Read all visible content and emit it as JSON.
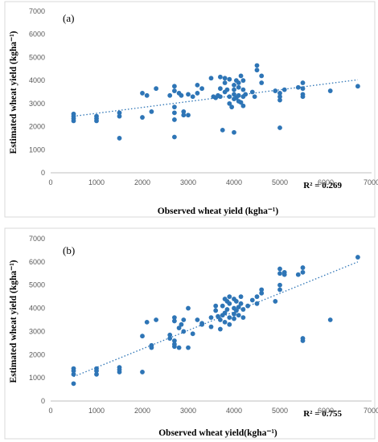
{
  "chart_data": [
    {
      "type": "scatter",
      "panel_label": "(a)",
      "xlabel": "Observed wheat yield (kgha⁻¹)",
      "ylabel": "Estimated wheat yield (kgha⁻¹)",
      "xlim": [
        0,
        7000
      ],
      "ylim": [
        0,
        7000
      ],
      "x_ticks": [
        0,
        1000,
        2000,
        3000,
        4000,
        5000,
        6000,
        7000
      ],
      "y_ticks": [
        0,
        1000,
        2000,
        3000,
        4000,
        5000,
        6000,
        7000
      ],
      "r2_label": "R² = 0.269",
      "trendline": {
        "x": [
          500,
          6700
        ],
        "y": [
          2450,
          4030
        ]
      },
      "color": "#2e75b6",
      "points": [
        [
          500,
          2550
        ],
        [
          500,
          2450
        ],
        [
          500,
          2350
        ],
        [
          500,
          2250
        ],
        [
          1000,
          2450
        ],
        [
          1000,
          2350
        ],
        [
          1000,
          2250
        ],
        [
          1500,
          2600
        ],
        [
          1500,
          2450
        ],
        [
          1500,
          1500
        ],
        [
          2000,
          3450
        ],
        [
          2000,
          2400
        ],
        [
          2100,
          3350
        ],
        [
          2200,
          2650
        ],
        [
          2300,
          3650
        ],
        [
          2600,
          3350
        ],
        [
          2700,
          3750
        ],
        [
          2700,
          3550
        ],
        [
          2700,
          2850
        ],
        [
          2700,
          2600
        ],
        [
          2700,
          2300
        ],
        [
          2700,
          1550
        ],
        [
          2800,
          3450
        ],
        [
          2850,
          3350
        ],
        [
          2900,
          2650
        ],
        [
          2900,
          2500
        ],
        [
          3000,
          3400
        ],
        [
          3000,
          2500
        ],
        [
          3100,
          3300
        ],
        [
          3200,
          3800
        ],
        [
          3200,
          3450
        ],
        [
          3300,
          3650
        ],
        [
          3500,
          4100
        ],
        [
          3550,
          3300
        ],
        [
          3600,
          3250
        ],
        [
          3650,
          3350
        ],
        [
          3700,
          4150
        ],
        [
          3700,
          3650
        ],
        [
          3700,
          3300
        ],
        [
          3750,
          1850
        ],
        [
          3800,
          4100
        ],
        [
          3800,
          3900
        ],
        [
          3800,
          3500
        ],
        [
          3850,
          3600
        ],
        [
          3900,
          4050
        ],
        [
          3900,
          3300
        ],
        [
          3900,
          3000
        ],
        [
          3950,
          2850
        ],
        [
          4000,
          3800
        ],
        [
          4000,
          3600
        ],
        [
          4000,
          3400
        ],
        [
          4000,
          3200
        ],
        [
          4000,
          1750
        ],
        [
          4050,
          4000
        ],
        [
          4050,
          3250
        ],
        [
          4100,
          3900
        ],
        [
          4100,
          3700
        ],
        [
          4100,
          3350
        ],
        [
          4100,
          3100
        ],
        [
          4150,
          4200
        ],
        [
          4150,
          3050
        ],
        [
          4200,
          4000
        ],
        [
          4200,
          3600
        ],
        [
          4200,
          3300
        ],
        [
          4200,
          2900
        ],
        [
          4250,
          3400
        ],
        [
          4400,
          3500
        ],
        [
          4450,
          3300
        ],
        [
          4500,
          4450
        ],
        [
          4500,
          4650
        ],
        [
          4600,
          4200
        ],
        [
          4600,
          3900
        ],
        [
          4900,
          3550
        ],
        [
          5000,
          3450
        ],
        [
          5000,
          3300
        ],
        [
          5000,
          3150
        ],
        [
          5000,
          1950
        ],
        [
          5100,
          3600
        ],
        [
          5400,
          3700
        ],
        [
          5500,
          3900
        ],
        [
          5500,
          3650
        ],
        [
          5500,
          3400
        ],
        [
          5500,
          3300
        ],
        [
          6100,
          3550
        ],
        [
          6700,
          3750
        ]
      ]
    },
    {
      "type": "scatter",
      "panel_label": "(b)",
      "xlabel": "Observed wheat yield(kgha⁻¹)",
      "ylabel": "Estimated wheat yield (kgha⁻¹)",
      "xlim": [
        0,
        7000
      ],
      "ylim": [
        0,
        7000
      ],
      "x_ticks": [
        0,
        1000,
        2000,
        3000,
        4000,
        5000,
        6000,
        7000
      ],
      "y_ticks": [
        0,
        1000,
        2000,
        3000,
        4000,
        5000,
        6000,
        7000
      ],
      "r2_label": "R² = 0.755",
      "trendline": {
        "x": [
          500,
          6700
        ],
        "y": [
          1050,
          6000
        ]
      },
      "color": "#2e75b6",
      "points": [
        [
          500,
          1400
        ],
        [
          500,
          1300
        ],
        [
          500,
          1150
        ],
        [
          500,
          750
        ],
        [
          1000,
          1400
        ],
        [
          1000,
          1300
        ],
        [
          1000,
          1150
        ],
        [
          1500,
          1450
        ],
        [
          1500,
          1350
        ],
        [
          1500,
          1250
        ],
        [
          2000,
          2800
        ],
        [
          2000,
          1250
        ],
        [
          2100,
          3400
        ],
        [
          2200,
          2400
        ],
        [
          2200,
          2300
        ],
        [
          2300,
          3500
        ],
        [
          2600,
          2700
        ],
        [
          2600,
          2850
        ],
        [
          2700,
          3600
        ],
        [
          2700,
          3450
        ],
        [
          2700,
          2600
        ],
        [
          2700,
          2450
        ],
        [
          2700,
          2350
        ],
        [
          2800,
          3150
        ],
        [
          2800,
          2300
        ],
        [
          2850,
          3300
        ],
        [
          2900,
          3500
        ],
        [
          2900,
          3000
        ],
        [
          3000,
          4000
        ],
        [
          3000,
          2300
        ],
        [
          3100,
          2900
        ],
        [
          3200,
          3500
        ],
        [
          3300,
          3300
        ],
        [
          3300,
          3350
        ],
        [
          3500,
          3600
        ],
        [
          3500,
          3200
        ],
        [
          3600,
          4100
        ],
        [
          3600,
          3900
        ],
        [
          3650,
          3650
        ],
        [
          3700,
          3500
        ],
        [
          3700,
          3100
        ],
        [
          3750,
          4100
        ],
        [
          3750,
          3700
        ],
        [
          3800,
          4400
        ],
        [
          3800,
          3800
        ],
        [
          3800,
          3400
        ],
        [
          3850,
          4300
        ],
        [
          3850,
          3950
        ],
        [
          3900,
          4500
        ],
        [
          3900,
          4200
        ],
        [
          3900,
          3600
        ],
        [
          3900,
          3300
        ],
        [
          4000,
          4400
        ],
        [
          4000,
          4000
        ],
        [
          4000,
          3750
        ],
        [
          4000,
          3550
        ],
        [
          4050,
          4300
        ],
        [
          4050,
          3900
        ],
        [
          4100,
          4050
        ],
        [
          4100,
          3700
        ],
        [
          4150,
          4500
        ],
        [
          4150,
          4200
        ],
        [
          4200,
          3950
        ],
        [
          4200,
          3600
        ],
        [
          4300,
          4100
        ],
        [
          4400,
          4350
        ],
        [
          4500,
          4500
        ],
        [
          4500,
          4200
        ],
        [
          4600,
          4650
        ],
        [
          4600,
          4800
        ],
        [
          4900,
          4300
        ],
        [
          5000,
          5700
        ],
        [
          5000,
          5500
        ],
        [
          5000,
          5000
        ],
        [
          5000,
          4800
        ],
        [
          5100,
          5550
        ],
        [
          5100,
          5450
        ],
        [
          5400,
          5450
        ],
        [
          5500,
          5750
        ],
        [
          5500,
          5550
        ],
        [
          5500,
          2700
        ],
        [
          5500,
          2600
        ],
        [
          6100,
          3500
        ],
        [
          6700,
          6200
        ]
      ]
    }
  ]
}
